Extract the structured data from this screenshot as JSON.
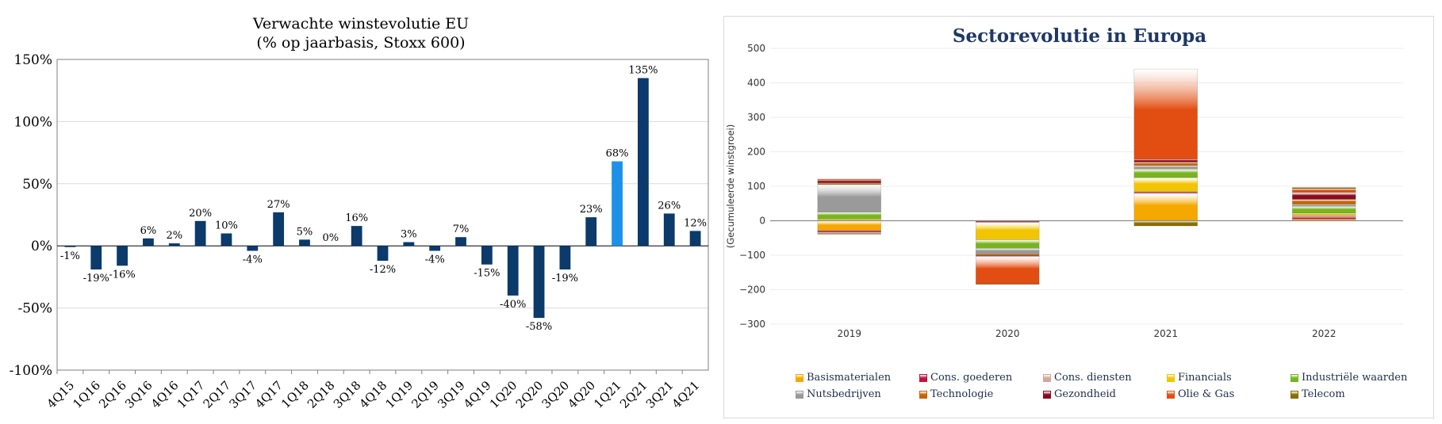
{
  "chart_data": [
    {
      "type": "bar",
      "title": "Verwachte winstevolutie EU",
      "subtitle": "(% op jaarbasis, Stoxx 600)",
      "xlabel": "",
      "ylabel": "",
      "ylim": [
        -100,
        150
      ],
      "yticks": [
        "150%",
        "100%",
        "50%",
        "0%",
        "-50%",
        "-100%"
      ],
      "ytick_values": [
        150,
        100,
        50,
        0,
        -50,
        -100
      ],
      "categories": [
        "4Q15",
        "1Q16",
        "2Q16",
        "3Q16",
        "4Q16",
        "1Q17",
        "2Q17",
        "3Q17",
        "4Q17",
        "1Q18",
        "2Q18",
        "3Q18",
        "4Q18",
        "1Q19",
        "2Q19",
        "3Q19",
        "4Q19",
        "1Q20",
        "2Q20",
        "3Q20",
        "4Q20",
        "1Q21",
        "2Q21",
        "3Q21",
        "4Q21"
      ],
      "values": [
        -1,
        -19,
        -16,
        6,
        2,
        20,
        10,
        -4,
        27,
        5,
        0,
        16,
        -12,
        3,
        -4,
        7,
        -15,
        -40,
        -58,
        -19,
        23,
        68,
        135,
        26,
        12
      ],
      "data_labels": [
        "-1%",
        "-19%",
        "-16%",
        "6%",
        "2%",
        "20%",
        "10%",
        "-4%",
        "27%",
        "5%",
        "0%",
        "16%",
        "-12%",
        "3%",
        "-4%",
        "7%",
        "-15%",
        "-40%",
        "-58%",
        "-19%",
        "23%",
        "68%",
        "135%",
        "26%",
        "12%"
      ],
      "colors": {
        "default": "#0b3a6b",
        "highlight": "#1e90e8"
      },
      "highlight_index": 21,
      "grid": true
    },
    {
      "type": "bar",
      "stacked": true,
      "title": "Sectorevolutie in Europa",
      "ylabel": "(Gecumuleerde winstgroei)",
      "xlabel": "",
      "ylim": [
        -300,
        500
      ],
      "yticks": [
        "500",
        "400",
        "300",
        "200",
        "100",
        "0",
        "−100",
        "−200",
        "−300"
      ],
      "ytick_values": [
        500,
        400,
        300,
        200,
        100,
        0,
        -100,
        -200,
        -300
      ],
      "categories": [
        "2019",
        "2020",
        "2021",
        "2022"
      ],
      "legend_position": "bottom",
      "series": [
        {
          "name": "Basismaterialen",
          "color": "#f5a800",
          "values": [
            -28,
            0,
            80,
            5
          ]
        },
        {
          "name": "Cons. goederen",
          "color": "#c0143c",
          "values": [
            -5,
            -3,
            3,
            6
          ]
        },
        {
          "name": "Cons. diensten",
          "color": "#d4a59a",
          "values": [
            -4,
            -2,
            2,
            5
          ]
        },
        {
          "name": "Financials",
          "color": "#f2c500",
          "values": [
            5,
            -50,
            40,
            6
          ]
        },
        {
          "name": "Industriële waarden",
          "color": "#78b41e",
          "values": [
            20,
            -25,
            25,
            20
          ]
        },
        {
          "name": "Nutsbedrijven",
          "color": "#9a9a9a",
          "values": [
            80,
            -15,
            10,
            6
          ]
        },
        {
          "name": "Technologie",
          "color": "#c86400",
          "values": [
            5,
            -5,
            10,
            14
          ]
        },
        {
          "name": "Gezondheid",
          "color": "#8b0a1e",
          "values": [
            8,
            -3,
            8,
            20
          ]
        },
        {
          "name": "Olie & Gas",
          "color": "#e24e12",
          "values": [
            3,
            -80,
            262,
            11
          ]
        },
        {
          "name": "Telecom",
          "color": "#8a6d00",
          "values": [
            -2,
            -2,
            -15,
            4
          ]
        }
      ]
    }
  ]
}
